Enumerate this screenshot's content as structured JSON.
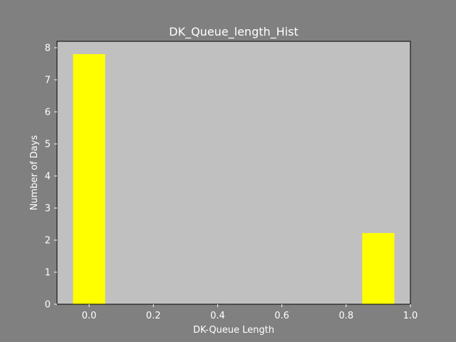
{
  "chart_data": {
    "type": "bar",
    "title": "DK_Queue_length_Hist",
    "xlabel": "DK-Queue Length",
    "ylabel": "Number of Days",
    "xlim": [
      -0.1,
      1.0
    ],
    "ylim": [
      0,
      8.2
    ],
    "xticks": [
      0.0,
      0.2,
      0.4,
      0.6,
      0.8,
      1.0
    ],
    "xtick_labels": [
      "0.0",
      "0.2",
      "0.4",
      "0.6",
      "0.8",
      "1.0"
    ],
    "yticks": [
      0,
      1,
      2,
      3,
      4,
      5,
      6,
      7,
      8
    ],
    "ytick_labels": [
      "0",
      "1",
      "2",
      "3",
      "4",
      "5",
      "6",
      "7",
      "8"
    ],
    "bars": [
      {
        "x_start": -0.05,
        "x_end": 0.05,
        "value": 7.8
      },
      {
        "x_start": 0.85,
        "x_end": 0.95,
        "value": 2.22
      }
    ],
    "grid": false,
    "legend": "none"
  },
  "colors": {
    "figure_background": "#808080",
    "axes_background": "#c0c0c0",
    "bar_fill": "#ffff00",
    "text": "#ffffff",
    "axes_edge": "#000000"
  }
}
